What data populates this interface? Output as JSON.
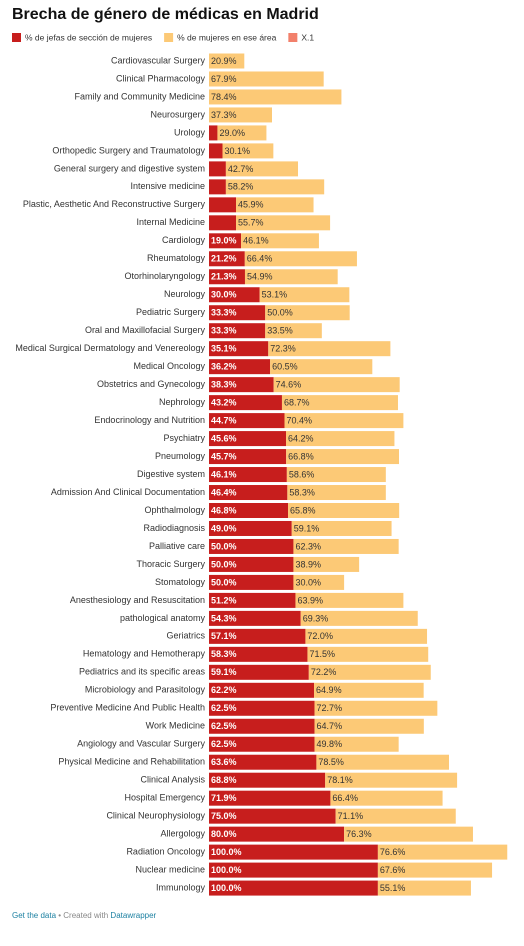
{
  "chart_data": {
    "type": "stacked_bar_horizontal",
    "title": "Brecha de género de médicas en Madrid",
    "categories": [
      "Cardiovascular Surgery",
      "Clinical Pharmacology",
      "Family and Community Medicine",
      "Neurosurgery",
      "Urology",
      "Orthopedic Surgery and Traumatology",
      "General surgery and digestive system",
      "Intensive medicine",
      "Plastic, Aesthetic And Reconstructive Surgery",
      "Internal Medicine",
      "Cardiology",
      "Rheumatology",
      "Otorhinolaryngology",
      "Neurology",
      "Pediatric Surgery",
      "Oral and Maxillofacial Surgery",
      "Medical Surgical Dermatology and Venereology",
      "Medical Oncology",
      "Obstetrics and Gynecology",
      "Nephrology",
      "Endocrinology and Nutrition",
      "Psychiatry",
      "Pneumology",
      "Digestive system",
      "Admission And Clinical Documentation",
      "Ophthalmology",
      "Radiodiagnosis",
      "Palliative care",
      "Thoracic Surgery",
      "Stomatology",
      "Anesthesiology and Resuscitation",
      "pathological anatomy",
      "Geriatrics",
      "Hematology and Hemotherapy",
      "Pediatrics and its specific areas",
      "Microbiology and Parasitology",
      "Preventive Medicine And Public Health",
      "Work Medicine",
      "Angiology and Vascular Surgery",
      "Physical Medicine and Rehabilitation",
      "Clinical Analysis",
      "Hospital Emergency",
      "Clinical Neurophysiology",
      "Allergology",
      "Radiation Oncology",
      "Nuclear medicine",
      "Immunology"
    ],
    "series": [
      {
        "name": "% de jefas de sección de mujeres",
        "color": "#c71e1d",
        "values": [
          null,
          null,
          null,
          null,
          5,
          8,
          10,
          10,
          16,
          16,
          19.0,
          21.2,
          21.3,
          30.0,
          33.3,
          33.3,
          35.1,
          36.2,
          38.3,
          43.2,
          44.7,
          45.6,
          45.7,
          46.1,
          46.4,
          46.8,
          49.0,
          50.0,
          50.0,
          50.0,
          51.2,
          54.3,
          57.1,
          58.3,
          59.1,
          62.2,
          62.5,
          62.5,
          62.5,
          63.6,
          68.8,
          71.9,
          75.0,
          80.0,
          100.0,
          100.0,
          100.0
        ],
        "value_labels": [
          null,
          null,
          null,
          null,
          null,
          null,
          null,
          null,
          null,
          null,
          "19.0%",
          "21.2%",
          "21.3%",
          "30.0%",
          "33.3%",
          "33.3%",
          "35.1%",
          "36.2%",
          "38.3%",
          "43.2%",
          "44.7%",
          "45.6%",
          "45.7%",
          "46.1%",
          "46.4%",
          "46.8%",
          "49.0%",
          "50.0%",
          "50.0%",
          "50.0%",
          "51.2%",
          "54.3%",
          "57.1%",
          "58.3%",
          "59.1%",
          "62.2%",
          "62.5%",
          "62.5%",
          "62.5%",
          "63.6%",
          "68.8%",
          "71.9%",
          "75.0%",
          "80.0%",
          "100.0%",
          "100.0%",
          "100.0%"
        ]
      },
      {
        "name": "% de mujeres en ese área",
        "color": "#fcc976",
        "values": [
          20.9,
          67.9,
          78.4,
          37.3,
          29.0,
          30.1,
          42.7,
          58.2,
          45.9,
          55.7,
          46.1,
          66.4,
          54.9,
          53.1,
          50.0,
          33.5,
          72.3,
          60.5,
          74.6,
          68.7,
          70.4,
          64.2,
          66.8,
          58.6,
          58.3,
          65.8,
          59.1,
          62.3,
          38.9,
          30.0,
          63.9,
          69.3,
          72.0,
          71.5,
          72.2,
          64.9,
          72.7,
          64.7,
          49.8,
          78.5,
          78.1,
          66.4,
          71.1,
          76.3,
          76.6,
          67.6,
          55.1
        ],
        "value_labels": [
          "20.9%",
          "67.9%",
          "78.4%",
          "37.3%",
          "29.0%",
          "30.1%",
          "42.7%",
          "58.2%",
          "45.9%",
          "55.7%",
          "46.1%",
          "66.4%",
          "54.9%",
          "53.1%",
          "50.0%",
          "33.5%",
          "72.3%",
          "60.5%",
          "74.6%",
          "68.7%",
          "70.4%",
          "64.2%",
          "66.8%",
          "58.6%",
          "58.3%",
          "65.8%",
          "59.1%",
          "62.3%",
          "38.9%",
          "30.0%",
          "63.9%",
          "69.3%",
          "72.0%",
          "71.5%",
          "72.2%",
          "64.9%",
          "72.7%",
          "64.7%",
          "49.8%",
          "78.5%",
          "78.1%",
          "66.4%",
          "71.1%",
          "76.3%",
          "76.6%",
          "67.6%",
          "55.1%"
        ]
      },
      {
        "name": "X.1",
        "color": "#f2806b",
        "values": [
          null,
          null,
          null,
          null,
          null,
          null,
          null,
          null,
          null,
          null,
          null,
          null,
          null,
          null,
          null,
          null,
          null,
          null,
          null,
          null,
          null,
          null,
          null,
          null,
          null,
          null,
          null,
          null,
          null,
          null,
          null,
          null,
          null,
          null,
          null,
          null,
          null,
          null,
          null,
          null,
          null,
          null,
          null,
          null,
          null,
          null,
          null
        ]
      }
    ],
    "xlim": [
      0,
      180
    ],
    "footer": {
      "data_link": "Get the data",
      "credit": " • Created with ",
      "tool": "Datawrapper"
    }
  }
}
